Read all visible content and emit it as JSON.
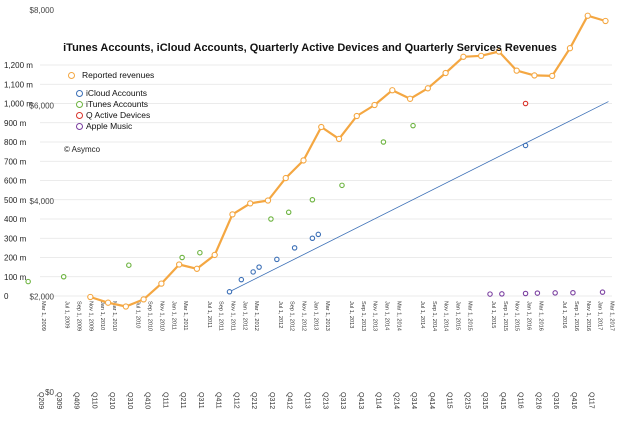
{
  "chart_data": {
    "type": "line",
    "title": "iTunes Accounts, iCloud Accounts, Quarterly Active Devices and Quarterly Services Revenues",
    "copyright": "© Asymco",
    "left_axis_labels": [
      "1,200 m",
      "1,100 m",
      "1,000 m",
      "900 m",
      "800 m",
      "700 m",
      "600 m",
      "500 m",
      "400 m",
      "300 m",
      "200 m",
      "100 m",
      "0"
    ],
    "left_axis_range": [
      0,
      1200
    ],
    "right_axis_labels": [
      "$8,000",
      "$6,000",
      "$4,000",
      "$2,000",
      "$0"
    ],
    "right_axis_range": [
      0,
      8000
    ],
    "date_ticks": [
      "Mar 1, 2009",
      "Jul 1, 2009",
      "Sep 1, 2009",
      "Nov 1, 2009",
      "Jan 1, 2010",
      "Mar 1, 2010",
      "Jul 1, 2010",
      "Sep 1, 2010",
      "Nov 1, 2010",
      "Jan 1, 2011",
      "Mar 1, 2011",
      "Jul 1, 2011",
      "Sep 1, 2011",
      "Nov 1, 2011",
      "Jan 1, 2012",
      "Mar 1, 2012",
      "Jul 1, 2012",
      "Sep 1, 2012",
      "Nov 1, 2012",
      "Jan 1, 2013",
      "Mar 1, 2013",
      "Jul 1, 2013",
      "Sep 1, 2013",
      "Nov 1, 2013",
      "Jan 1, 2014",
      "Mar 1, 2014",
      "Jul 1, 2014",
      "Sep 1, 2014",
      "Nov 1, 2014",
      "Jan 1, 2015",
      "Mar 1, 2015",
      "Jul 1, 2015",
      "Sep 1, 2015",
      "Nov 1, 2015",
      "Jan 1, 2016",
      "Mar 1, 2016",
      "Jul 1, 2016",
      "Sep 1, 2016",
      "Nov 1, 2016",
      "Jan 1, 2017",
      "Mar 1, 2017"
    ],
    "quarter_labels": [
      "Q209",
      "Q309",
      "Q409",
      "Q110",
      "Q210",
      "Q310",
      "Q410",
      "Q111",
      "Q211",
      "Q311",
      "Q411",
      "Q112",
      "Q212",
      "Q312",
      "Q412",
      "Q113",
      "Q213",
      "Q313",
      "Q413",
      "Q114",
      "Q214",
      "Q314",
      "Q414",
      "Q115",
      "Q215",
      "Q315",
      "Q415",
      "Q116",
      "Q216",
      "Q316",
      "Q416",
      "Q117"
    ],
    "legend": [
      {
        "name": "Reported revenues",
        "color": "#f4a742"
      },
      {
        "name": "iCloud Accounts",
        "color": "#3b6fb6"
      },
      {
        "name": "iTunes Accounts",
        "color": "#6cb33f"
      },
      {
        "name": "Q Active Devices",
        "color": "#d9342b"
      },
      {
        "name": "Apple Music",
        "color": "#7a3fa0"
      }
    ],
    "series": [
      {
        "name": "Reported revenues",
        "axis": "right",
        "color": "#f4a742",
        "points": [
          [
            "Q110",
            1990
          ],
          [
            "Q210",
            1870
          ],
          [
            "Q310",
            1790
          ],
          [
            "Q410",
            1940
          ],
          [
            "Q111",
            2270
          ],
          [
            "Q211",
            2670
          ],
          [
            "Q311",
            2580
          ],
          [
            "Q411",
            2870
          ],
          [
            "Q112",
            3720
          ],
          [
            "Q212",
            3950
          ],
          [
            "Q312",
            4010
          ],
          [
            "Q412",
            4480
          ],
          [
            "Q113",
            4850
          ],
          [
            "Q213",
            5550
          ],
          [
            "Q313",
            5300
          ],
          [
            "Q413",
            5780
          ],
          [
            "Q114",
            6010
          ],
          [
            "Q214",
            6320
          ],
          [
            "Q314",
            6140
          ],
          [
            "Q414",
            6360
          ],
          [
            "Q115",
            6680
          ],
          [
            "Q215",
            7020
          ],
          [
            "Q315",
            7040
          ],
          [
            "Q415",
            7130
          ],
          [
            "Q116",
            6730
          ],
          [
            "Q216",
            6630
          ],
          [
            "Q316",
            6620
          ],
          [
            "Q416",
            7200
          ],
          [
            "Q117",
            7880
          ],
          [
            "Q1 2017",
            7770
          ]
        ]
      },
      {
        "name": "iCloud Accounts",
        "axis": "left",
        "color": "#3b6fb6",
        "points": [
          [
            "Nov 1, 2011",
            22
          ],
          [
            "Jan 1, 2012",
            85
          ],
          [
            "Mar 1, 2012",
            125
          ],
          [
            "Apr 1, 2012",
            150
          ],
          [
            "Jul 1, 2012",
            190
          ],
          [
            "Oct 1, 2012",
            250
          ],
          [
            "Jan 1, 2013",
            300
          ],
          [
            "Feb 1, 2013",
            320
          ],
          [
            "Jan 1, 2016",
            782
          ]
        ],
        "trendline": [
          [
            "Nov 1, 2011",
            22
          ],
          [
            "Mar 1, 2017",
            1010
          ]
        ]
      },
      {
        "name": "iTunes Accounts",
        "axis": "left",
        "color": "#6cb33f",
        "points": [
          [
            "Jan 1, 2009",
            75
          ],
          [
            "Jul 1, 2009",
            100
          ],
          [
            "Jun 1, 2010",
            160
          ],
          [
            "Mar 1, 2011",
            200
          ],
          [
            "Jun 1, 2011",
            225
          ],
          [
            "Jun 1, 2012",
            400
          ],
          [
            "Sep 1, 2012",
            435
          ],
          [
            "Jan 1, 2013",
            500
          ],
          [
            "Jun 1, 2013",
            575
          ],
          [
            "Jan 1, 2014",
            800
          ],
          [
            "Jun 1, 2014",
            885
          ]
        ]
      },
      {
        "name": "Q Active Devices",
        "axis": "left",
        "color": "#d9342b",
        "points": [
          [
            "Jan 1, 2016",
            1000
          ]
        ]
      },
      {
        "name": "Apple Music",
        "axis": "left",
        "color": "#7a3fa0",
        "points": [
          [
            "Jul 1, 2015",
            10
          ],
          [
            "Sep 1, 2015",
            11
          ],
          [
            "Jan 1, 2016",
            13
          ],
          [
            "Mar 1, 2016",
            15
          ],
          [
            "Jun 1, 2016",
            16
          ],
          [
            "Sep 1, 2016",
            17
          ],
          [
            "Feb 1, 2017",
            20
          ]
        ]
      }
    ]
  }
}
